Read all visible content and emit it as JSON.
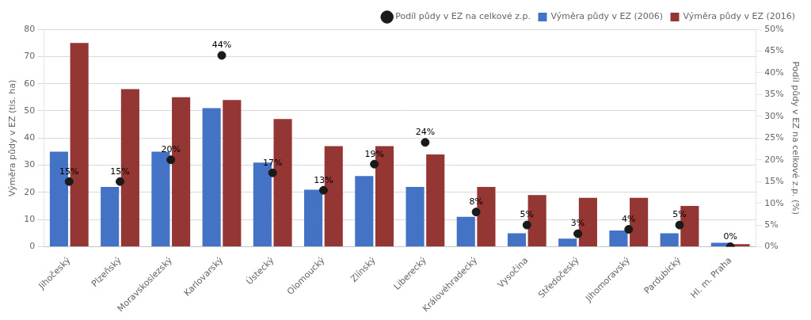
{
  "chart_data": {
    "type": "bar",
    "categories": [
      "Jihočeský",
      "Plzeňský",
      "Moravskoslezský",
      "Karlovarský",
      "Ústecký",
      "Olomoucký",
      "Zlínský",
      "Liberecký",
      "Královéhradecký",
      "Vysočina",
      "Středočeský",
      "Jihomoravský",
      "Pardubický",
      "Hl. m. Praha"
    ],
    "series": [
      {
        "name": "Výměra půdy v EZ (2006)",
        "color": "#4472C4",
        "values": [
          35,
          22,
          35,
          51,
          31,
          21,
          26,
          22,
          11,
          5,
          3,
          6,
          5,
          1.5
        ]
      },
      {
        "name": "Výměra půdy v EZ (2016)",
        "color": "#943634",
        "values": [
          75,
          58,
          55,
          54,
          47,
          37,
          37,
          34,
          22,
          19,
          18,
          18,
          15,
          1
        ]
      },
      {
        "name": "Podíl půdy v EZ na celkové z.p.",
        "type": "scatter",
        "axis": "y2",
        "color": "#1a1a1a",
        "marker": "circle",
        "data_labels": true,
        "values": [
          15,
          15,
          20,
          44,
          17,
          13,
          19,
          24,
          8,
          5,
          3,
          4,
          5,
          0
        ],
        "value_labels": [
          "15%",
          "15%",
          "20%",
          "44%",
          "17%",
          "13%",
          "19%",
          "24%",
          "8%",
          "5%",
          "3%",
          "4%",
          "5%",
          "0%"
        ]
      }
    ],
    "ylabel": "Výměra půdy v EZ (tis. ha)",
    "y2label": "Podíl půdy v EZ na celkové z.p. (%)",
    "ylim": [
      0,
      80
    ],
    "yticks": [
      0,
      10,
      20,
      30,
      40,
      50,
      60,
      70,
      80
    ],
    "y2lim": [
      0,
      50
    ],
    "y2ticks": [
      {
        "value": 0,
        "label": "0%"
      },
      {
        "value": 5,
        "label": "5%"
      },
      {
        "value": 10,
        "label": "10%"
      },
      {
        "value": 15,
        "label": "15%"
      },
      {
        "value": 20,
        "label": "20%"
      },
      {
        "value": 25,
        "label": "25%"
      },
      {
        "value": 30,
        "label": "30%"
      },
      {
        "value": 35,
        "label": "35%"
      },
      {
        "value": 40,
        "label": "40%"
      },
      {
        "value": 45,
        "label": "45%"
      },
      {
        "value": 50,
        "label": "50%"
      }
    ],
    "grid": true,
    "legend": "upper right"
  }
}
